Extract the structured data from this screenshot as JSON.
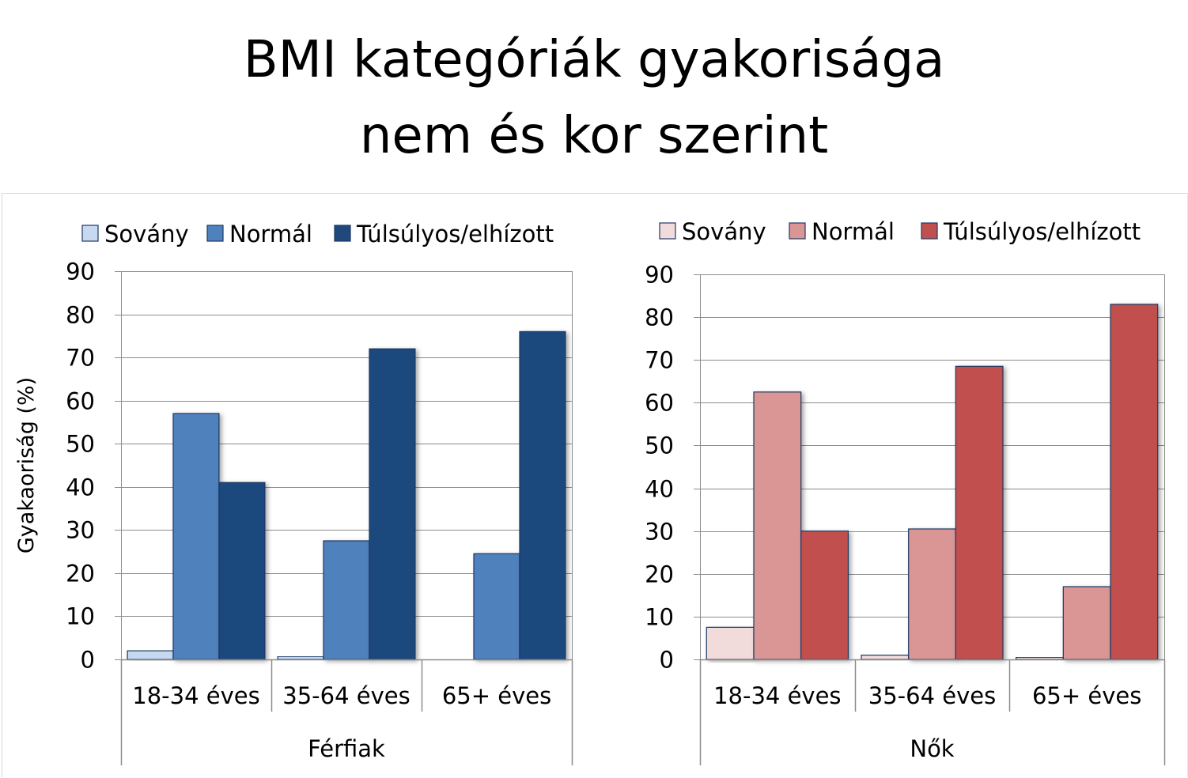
{
  "title": {
    "line1": "BMI kategóriák gyakorisága",
    "line2": "nem és kor szerint"
  },
  "chart_data": [
    {
      "type": "bar",
      "group": "Férfiak",
      "categories": [
        "18-34 éves",
        "35-64 éves",
        "65+ éves"
      ],
      "ylabel": "Gyakaoriság (%)",
      "ylim": [
        0,
        90
      ],
      "yticks": [
        0,
        10,
        20,
        30,
        40,
        50,
        60,
        70,
        80,
        90
      ],
      "grid": true,
      "legend": "top",
      "series": [
        {
          "name": "Sovány",
          "values": [
            2,
            0.7,
            0
          ],
          "color": "#c6d9f1"
        },
        {
          "name": "Normál",
          "values": [
            57,
            27.5,
            24.5
          ],
          "color": "#4f81bd"
        },
        {
          "name": "Túlsúlyos/elhízott",
          "values": [
            41,
            72,
            76
          ],
          "color": "#1f497d"
        }
      ]
    },
    {
      "type": "bar",
      "group": "Nők",
      "categories": [
        "18-34 éves",
        "35-64 éves",
        "65+ éves"
      ],
      "ylabel": "",
      "ylim": [
        0,
        90
      ],
      "yticks": [
        0,
        10,
        20,
        30,
        40,
        50,
        60,
        70,
        80,
        90
      ],
      "grid": true,
      "legend": "top",
      "series": [
        {
          "name": "Sovány",
          "values": [
            7.5,
            1,
            0.5
          ],
          "color": "#f2dcdb"
        },
        {
          "name": "Normál",
          "values": [
            62.5,
            30.5,
            17
          ],
          "color": "#d99694"
        },
        {
          "name": "Túlsúlyos/elhízott",
          "values": [
            30,
            68.5,
            83
          ],
          "color": "#c0504d"
        }
      ]
    }
  ]
}
